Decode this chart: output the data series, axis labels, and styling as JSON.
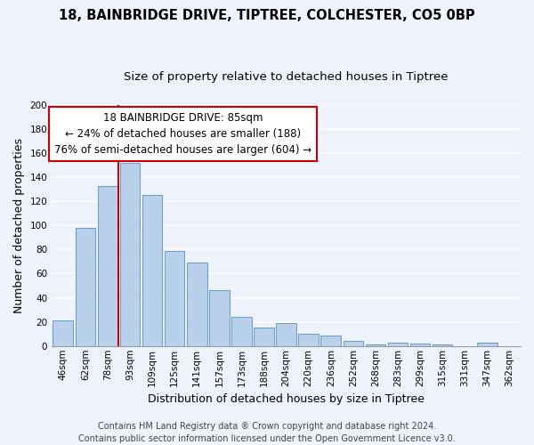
{
  "title1": "18, BAINBRIDGE DRIVE, TIPTREE, COLCHESTER, CO5 0BP",
  "title2": "Size of property relative to detached houses in Tiptree",
  "xlabel": "Distribution of detached houses by size in Tiptree",
  "ylabel": "Number of detached properties",
  "bar_labels": [
    "46sqm",
    "62sqm",
    "78sqm",
    "93sqm",
    "109sqm",
    "125sqm",
    "141sqm",
    "157sqm",
    "173sqm",
    "188sqm",
    "204sqm",
    "220sqm",
    "236sqm",
    "252sqm",
    "268sqm",
    "283sqm",
    "299sqm",
    "315sqm",
    "331sqm",
    "347sqm",
    "362sqm"
  ],
  "bar_heights": [
    21,
    98,
    133,
    152,
    125,
    79,
    69,
    46,
    24,
    15,
    19,
    10,
    9,
    4,
    1,
    3,
    2,
    1,
    0,
    3,
    0
  ],
  "bar_color": "#b8d0ea",
  "bar_edge_color": "#6699cc",
  "annotation_text_line1": "18 BAINBRIDGE DRIVE: 85sqm",
  "annotation_text_line2": "← 24% of detached houses are smaller (188)",
  "annotation_text_line3": "76% of semi-detached houses are larger (604) →",
  "annotation_box_color": "#ffffff",
  "annotation_box_edge_color": "#cc0000",
  "red_line_color": "#cc0000",
  "footer1": "Contains HM Land Registry data ® Crown copyright and database right 2024.",
  "footer2": "Contains public sector information licensed under the Open Government Licence v3.0.",
  "ylim": [
    0,
    200
  ],
  "yticks": [
    0,
    20,
    40,
    60,
    80,
    100,
    120,
    140,
    160,
    180,
    200
  ],
  "bg_color": "#eef2fa",
  "grid_color": "#ffffff",
  "title1_fontsize": 10.5,
  "title2_fontsize": 9.5,
  "axis_label_fontsize": 9,
  "tick_fontsize": 7.5,
  "annotation_fontsize": 8.5,
  "footer_fontsize": 7
}
